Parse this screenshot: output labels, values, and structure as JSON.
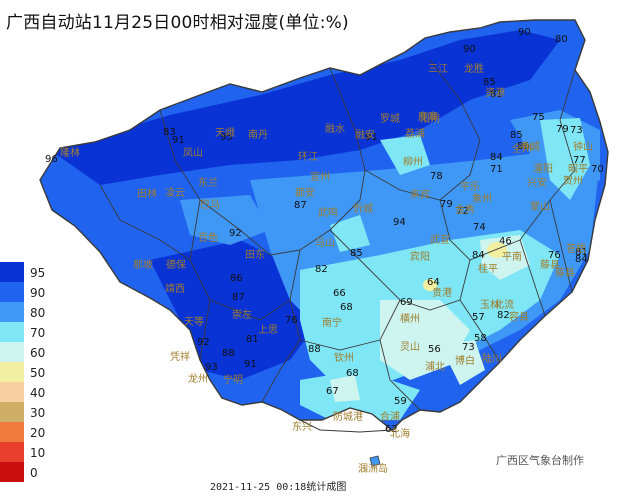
{
  "title": "广西自动站11月25日00时相对湿度(单位:%)",
  "credit": "广西区气象台制作",
  "footer": "2021-11-25 00:18统计成图",
  "legend": [
    {
      "label": "95",
      "color": "#0a33d6"
    },
    {
      "label": "90",
      "color": "#1f63ef"
    },
    {
      "label": "80",
      "color": "#3f98f6"
    },
    {
      "label": "70",
      "color": "#7fe6f5"
    },
    {
      "label": "60",
      "color": "#cdf4ee"
    },
    {
      "label": "50",
      "color": "#f2f0a0"
    },
    {
      "label": "40",
      "color": "#f7cfa0"
    },
    {
      "label": "30",
      "color": "#cfae66"
    },
    {
      "label": "20",
      "color": "#f07a3e"
    },
    {
      "label": "10",
      "color": "#e93f2c"
    },
    {
      "label": "0",
      "color": "#c80e0e"
    }
  ],
  "cities": [
    {
      "name": "隆林"
    },
    {
      "name": "田林"
    },
    {
      "name": "凌云"
    },
    {
      "name": "凤山"
    },
    {
      "name": "天峨"
    },
    {
      "name": "南丹"
    },
    {
      "name": "环江"
    },
    {
      "name": "融安"
    },
    {
      "name": "三江"
    },
    {
      "name": "龙胜"
    },
    {
      "name": "资源"
    },
    {
      "name": "全州"
    },
    {
      "name": "兴安"
    },
    {
      "name": "灌阳"
    },
    {
      "name": "贺州"
    },
    {
      "name": "钟山"
    },
    {
      "name": "昭平"
    },
    {
      "name": "藤县"
    },
    {
      "name": "苍梧"
    },
    {
      "name": "平南"
    },
    {
      "name": "藤县"
    },
    {
      "name": "北流"
    },
    {
      "name": "玉林"
    },
    {
      "name": "容县"
    },
    {
      "name": "贵港"
    },
    {
      "name": "宜州"
    },
    {
      "name": "柳州"
    },
    {
      "name": "来宾"
    },
    {
      "name": "武宣"
    },
    {
      "name": "桂平"
    },
    {
      "name": "巴马"
    },
    {
      "name": "东兰"
    },
    {
      "name": "百色"
    },
    {
      "name": "田东"
    },
    {
      "name": "德保"
    },
    {
      "name": "靖西"
    },
    {
      "name": "那坡"
    },
    {
      "name": "崇左"
    },
    {
      "name": "南宁"
    },
    {
      "name": "横州"
    },
    {
      "name": "灵山"
    },
    {
      "name": "浦北"
    },
    {
      "name": "博白"
    },
    {
      "name": "陆川"
    },
    {
      "name": "钦州"
    },
    {
      "name": "东兴"
    },
    {
      "name": "防城港"
    },
    {
      "name": "北海"
    },
    {
      "name": "合浦"
    },
    {
      "name": "涠洲岛"
    },
    {
      "name": "龙州"
    },
    {
      "name": "宁明"
    },
    {
      "name": "上思"
    },
    {
      "name": "马山"
    },
    {
      "name": "都安"
    },
    {
      "name": "忻城"
    },
    {
      "name": "象州"
    },
    {
      "name": "金秀"
    },
    {
      "name": "荔浦"
    },
    {
      "name": "阳朔"
    },
    {
      "name": "平乐"
    },
    {
      "name": "恭城"
    },
    {
      "name": "鹿寨"
    },
    {
      "name": "融水"
    },
    {
      "name": "罗城"
    },
    {
      "name": "天等"
    },
    {
      "name": "凭祥"
    },
    {
      "name": "武鸣"
    },
    {
      "name": "宾阳"
    },
    {
      "name": "蒙山"
    }
  ],
  "stations": [
    {
      "value": "96"
    },
    {
      "value": "95"
    },
    {
      "value": "91"
    },
    {
      "value": "83"
    },
    {
      "value": "90"
    },
    {
      "value": "90"
    },
    {
      "value": "80"
    },
    {
      "value": "85"
    },
    {
      "value": "81"
    },
    {
      "value": "75"
    },
    {
      "value": "79"
    },
    {
      "value": "91"
    },
    {
      "value": "85"
    },
    {
      "value": "86"
    },
    {
      "value": "84"
    },
    {
      "value": "73"
    },
    {
      "value": "77"
    },
    {
      "value": "70"
    },
    {
      "value": "76"
    },
    {
      "value": "84"
    },
    {
      "value": "81"
    },
    {
      "value": "72"
    },
    {
      "value": "78"
    },
    {
      "value": "79"
    },
    {
      "value": "74"
    },
    {
      "value": "68"
    },
    {
      "value": "76"
    },
    {
      "value": "69"
    },
    {
      "value": "64"
    },
    {
      "value": "57"
    },
    {
      "value": "82"
    },
    {
      "value": "58"
    },
    {
      "value": "56"
    },
    {
      "value": "73"
    },
    {
      "value": "68"
    },
    {
      "value": "67"
    },
    {
      "value": "59"
    },
    {
      "value": "62"
    },
    {
      "value": "71"
    },
    {
      "value": "94"
    },
    {
      "value": "92"
    },
    {
      "value": "93"
    },
    {
      "value": "88"
    },
    {
      "value": "88"
    },
    {
      "value": "87"
    },
    {
      "value": "46"
    },
    {
      "value": "84"
    },
    {
      "value": "82"
    },
    {
      "value": "86"
    },
    {
      "value": "87"
    },
    {
      "value": "66"
    },
    {
      "value": "85"
    },
    {
      "value": "91"
    },
    {
      "value": "81"
    },
    {
      "value": "92"
    }
  ]
}
